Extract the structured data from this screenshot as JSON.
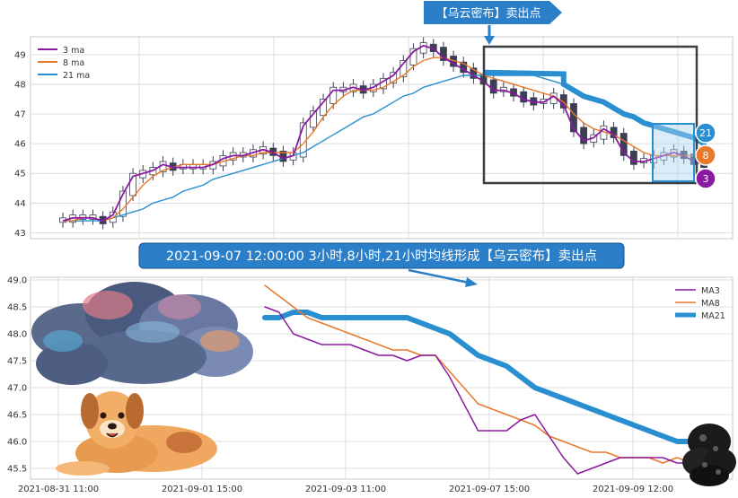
{
  "colors": {
    "ma3": "#8a1aa0",
    "ma8": "#e8782a",
    "ma21": "#2a8fd0",
    "grid": "#d4d4d4",
    "callout_bg": "#2a7fc8",
    "box": "#3a3f44",
    "candle_down": "#3a3f55",
    "candle_up": "#ffffff"
  },
  "top_banner": "【乌云密布】卖出点",
  "caption": "2021-09-07 12:00:00 3小时,8小时,21小时均线形成【乌云密布】卖出点",
  "badges": [
    "21",
    "8",
    "3"
  ],
  "icons": [
    "storm-cloud-icon",
    "dog-icon",
    "dark-cloud-icon"
  ],
  "chart_data": [
    {
      "type": "line",
      "subtype": "candlestick",
      "legend": [
        "3 ma",
        "8 ma",
        "21 ma"
      ],
      "legend_position": "top-left",
      "ylim": [
        42.8,
        49.6
      ],
      "yticks": [
        43,
        44,
        45,
        46,
        47,
        48,
        49
      ],
      "grid": true,
      "ma3": [
        43.4,
        43.5,
        43.5,
        43.5,
        43.4,
        43.6,
        44.3,
        44.9,
        45.0,
        45.1,
        45.3,
        45.2,
        45.2,
        45.2,
        45.2,
        45.3,
        45.5,
        45.6,
        45.6,
        45.7,
        45.8,
        45.7,
        45.5,
        45.6,
        46.6,
        47.0,
        47.4,
        47.8,
        47.8,
        47.9,
        47.8,
        47.9,
        48.1,
        48.3,
        48.7,
        49.1,
        49.3,
        49.2,
        48.9,
        48.7,
        48.5,
        48.3,
        48.1,
        47.8,
        47.8,
        47.7,
        47.5,
        47.4,
        47.4,
        47.6,
        47.3,
        46.5,
        46.1,
        46.2,
        46.5,
        46.3,
        45.7,
        45.4,
        45.4,
        45.5,
        45.6,
        45.7,
        45.6,
        45.4,
        45.3
      ],
      "ma8": [
        43.4,
        43.4,
        43.5,
        43.5,
        43.4,
        43.5,
        43.8,
        44.2,
        44.6,
        44.9,
        45.1,
        45.2,
        45.3,
        45.3,
        45.3,
        45.3,
        45.4,
        45.5,
        45.6,
        45.6,
        45.7,
        45.7,
        45.7,
        45.7,
        46.0,
        46.4,
        46.9,
        47.3,
        47.6,
        47.8,
        47.8,
        47.8,
        47.9,
        48.1,
        48.3,
        48.6,
        48.8,
        48.9,
        48.9,
        48.8,
        48.7,
        48.5,
        48.3,
        48.2,
        48.1,
        48.0,
        47.9,
        47.8,
        47.7,
        47.6,
        47.4,
        47.0,
        46.7,
        46.5,
        46.4,
        46.3,
        46.1,
        45.9,
        45.7,
        45.6,
        45.6,
        45.6,
        45.6,
        45.6,
        45.4
      ],
      "ma21": [
        43.4,
        43.4,
        43.4,
        43.4,
        43.4,
        43.5,
        43.6,
        43.7,
        43.8,
        44.0,
        44.1,
        44.2,
        44.4,
        44.5,
        44.6,
        44.8,
        44.9,
        45.0,
        45.1,
        45.2,
        45.3,
        45.4,
        45.5,
        45.6,
        45.7,
        45.9,
        46.1,
        46.3,
        46.5,
        46.7,
        46.9,
        47.0,
        47.2,
        47.4,
        47.6,
        47.7,
        47.9,
        48.0,
        48.1,
        48.2,
        48.3,
        48.3,
        48.3,
        48.3,
        48.3,
        48.3,
        48.3,
        48.3,
        48.2,
        48.1,
        48.0,
        47.8,
        47.6,
        47.5,
        47.4,
        47.2,
        47.0,
        46.9,
        46.7,
        46.6,
        46.5,
        46.4,
        46.3,
        46.2,
        46.0
      ]
    },
    {
      "type": "line",
      "series": [
        {
          "name": "MA3",
          "values": [
            48.5,
            48.4,
            48.0,
            47.9,
            47.8,
            47.8,
            47.8,
            47.7,
            47.6,
            47.6,
            47.5,
            47.6,
            47.6,
            47.2,
            46.7,
            46.2,
            46.2,
            46.2,
            46.4,
            46.5,
            46.1,
            45.7,
            45.4,
            45.5,
            45.6,
            45.7,
            45.7,
            45.7,
            45.7,
            45.6,
            45.6
          ]
        },
        {
          "name": "MA8",
          "values": [
            48.9,
            48.7,
            48.5,
            48.3,
            48.2,
            48.1,
            48.0,
            47.9,
            47.8,
            47.7,
            47.7,
            47.6,
            47.6,
            47.3,
            47.0,
            46.7,
            46.6,
            46.5,
            46.4,
            46.3,
            46.1,
            46.0,
            45.9,
            45.8,
            45.8,
            45.7,
            45.7,
            45.7,
            45.6,
            45.7,
            45.6
          ]
        },
        {
          "name": "MA21",
          "values": [
            48.3,
            48.3,
            48.4,
            48.4,
            48.3,
            48.3,
            48.3,
            48.3,
            48.3,
            48.3,
            48.3,
            48.2,
            48.1,
            48.0,
            47.8,
            47.6,
            47.5,
            47.4,
            47.2,
            47.0,
            46.9,
            46.8,
            46.7,
            46.6,
            46.5,
            46.4,
            46.3,
            46.2,
            46.1,
            46.0,
            46.0
          ]
        }
      ],
      "ylim": [
        45.3,
        49.05
      ],
      "yticks": [
        "49.0",
        "48.5",
        "48.0",
        "47.5",
        "47.0",
        "46.5",
        "46.0",
        "45.5"
      ],
      "xlabels": [
        "2021-08-31 11:00",
        "2021-09-01 15:00",
        "2021-09-03 11:00",
        "2021-09-07 15:00",
        "2021-09-09 12:00"
      ],
      "legend_position": "top-right",
      "grid": true
    }
  ]
}
